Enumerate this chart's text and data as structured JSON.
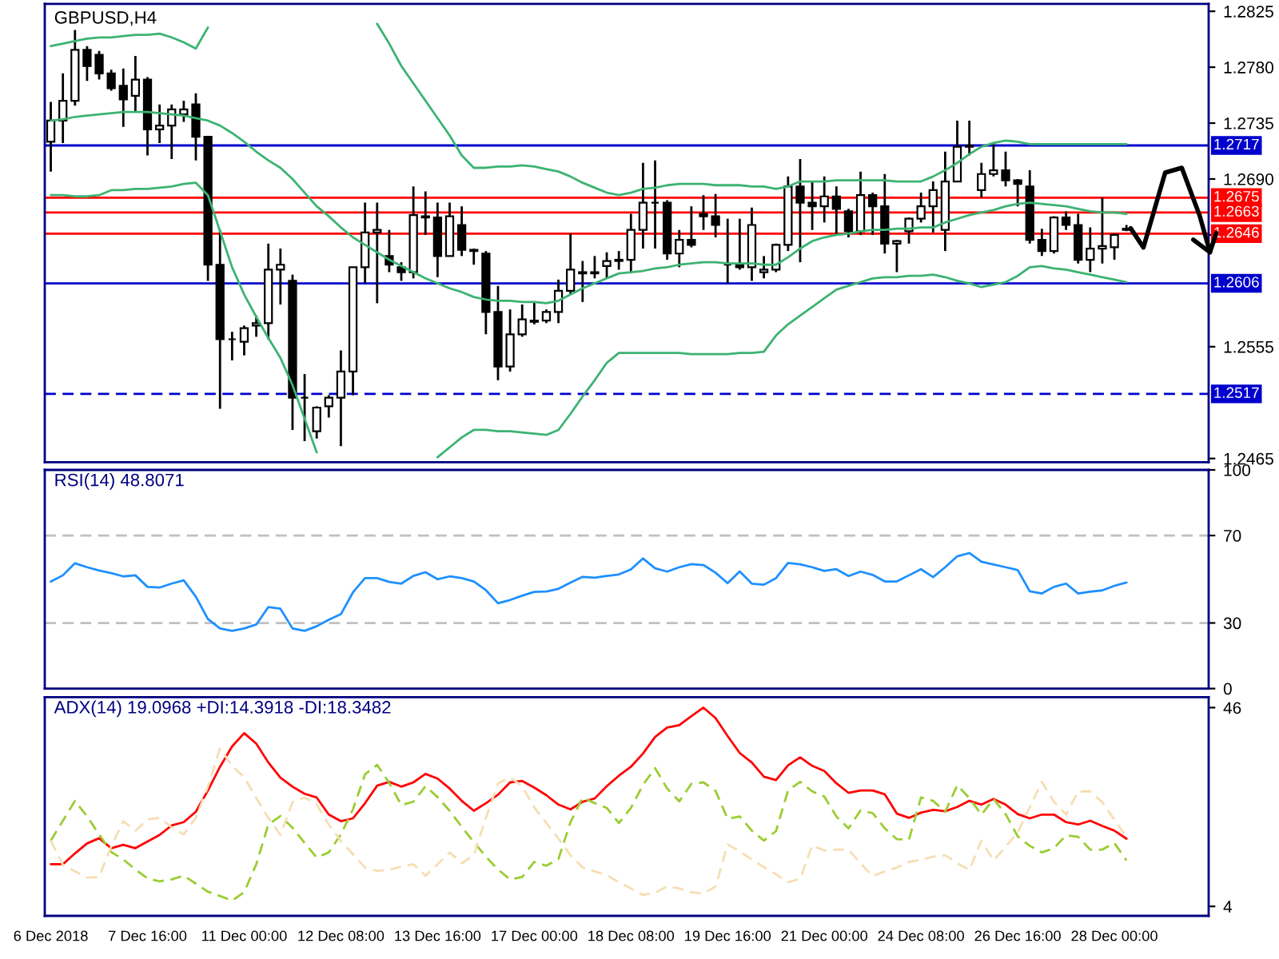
{
  "chart_data": [
    {
      "type": "candlestick",
      "title": "GBPUSD,H4",
      "categories": [
        null,
        null,
        null,
        null,
        null,
        null,
        null,
        null,
        null,
        null,
        null,
        null,
        null,
        null,
        null,
        null,
        null,
        null,
        null,
        null,
        null,
        null,
        null,
        null,
        null,
        null,
        null,
        null,
        null,
        null,
        null,
        null,
        null,
        null,
        null,
        null,
        null,
        null,
        null,
        null,
        null,
        null,
        null,
        null,
        null,
        null,
        null,
        null,
        null,
        null,
        null,
        null,
        null,
        null,
        null,
        null,
        null,
        null,
        null,
        null,
        null,
        null,
        null,
        null,
        null,
        null,
        null,
        null,
        null,
        null,
        null,
        null,
        null,
        null,
        null,
        null,
        null,
        null,
        null,
        null,
        null,
        null,
        null,
        null,
        null,
        null,
        null,
        null,
        null,
        null
      ],
      "ohlc": [
        [
          1.272,
          1.2752,
          1.2696,
          1.2737
        ],
        [
          1.2737,
          1.2775,
          1.2719,
          1.2753
        ],
        [
          1.2753,
          1.281,
          1.2749,
          1.2794
        ],
        [
          1.2794,
          1.2797,
          1.2769,
          1.2781
        ],
        [
          1.279,
          1.2793,
          1.277,
          1.2775
        ],
        [
          1.2775,
          1.2778,
          1.2761,
          1.2763
        ],
        [
          1.2765,
          1.2779,
          1.2732,
          1.2754
        ],
        [
          1.2757,
          1.2789,
          1.2744,
          1.277
        ],
        [
          1.277,
          1.2772,
          1.2709,
          1.273
        ],
        [
          1.273,
          1.275,
          1.2719,
          1.2733
        ],
        [
          1.2733,
          1.275,
          1.2706,
          1.2746
        ],
        [
          1.2742,
          1.2753,
          1.2736,
          1.2746
        ],
        [
          1.275,
          1.2759,
          1.2705,
          1.2724
        ],
        [
          1.2724,
          1.2724,
          1.2608,
          1.2621
        ],
        [
          1.2621,
          1.2649,
          1.2505,
          1.2561
        ],
        [
          1.2561,
          1.2567,
          1.2544,
          1.2561
        ],
        [
          1.2559,
          1.2572,
          1.2548,
          1.257
        ],
        [
          1.2572,
          1.258,
          1.2563,
          1.2574
        ],
        [
          1.2574,
          1.2638,
          1.2561,
          1.2617
        ],
        [
          1.2617,
          1.2634,
          1.2589,
          1.2621
        ],
        [
          1.2608,
          1.2613,
          1.2488,
          1.2514
        ],
        [
          1.2514,
          1.2533,
          1.2479,
          1.2514
        ],
        [
          1.2487,
          1.2507,
          1.2481,
          1.2506
        ],
        [
          1.2507,
          1.2516,
          1.2498,
          1.2514
        ],
        [
          1.2514,
          1.2552,
          1.2475,
          1.2535
        ],
        [
          1.2535,
          1.2619,
          1.2516,
          1.2619
        ],
        [
          1.2619,
          1.2671,
          1.2606,
          1.2647
        ],
        [
          1.2647,
          1.2671,
          1.259,
          1.2649
        ],
        [
          1.2628,
          1.2649,
          1.2615,
          1.2621
        ],
        [
          1.2619,
          1.2623,
          1.2608,
          1.2615
        ],
        [
          1.2615,
          1.2684,
          1.261,
          1.2661
        ],
        [
          1.266,
          1.268,
          1.2645,
          1.2659
        ],
        [
          1.2659,
          1.2671,
          1.2611,
          1.2628
        ],
        [
          1.2628,
          1.2671,
          1.2628,
          1.266
        ],
        [
          1.2653,
          1.2668,
          1.2628,
          1.2633
        ],
        [
          1.2633,
          1.2634,
          1.2621,
          1.2632
        ],
        [
          1.263,
          1.2632,
          1.2565,
          1.2583
        ],
        [
          1.2583,
          1.2604,
          1.2528,
          1.2539
        ],
        [
          1.2539,
          1.2585,
          1.2535,
          1.2565
        ],
        [
          1.2565,
          1.2589,
          1.2563,
          1.2577
        ],
        [
          1.2576,
          1.2591,
          1.2573,
          1.2575
        ],
        [
          1.2576,
          1.2585,
          1.2574,
          1.2583
        ],
        [
          1.2583,
          1.2609,
          1.2574,
          1.26
        ],
        [
          1.26,
          1.2646,
          1.2597,
          1.2617
        ],
        [
          1.2615,
          1.2624,
          1.2591,
          1.2614
        ],
        [
          1.2614,
          1.2628,
          1.261,
          1.2615
        ],
        [
          1.262,
          1.2631,
          1.261,
          1.2624
        ],
        [
          1.2624,
          1.2632,
          1.2617,
          1.2625
        ],
        [
          1.2625,
          1.2662,
          1.2614,
          1.2649
        ],
        [
          1.2649,
          1.2703,
          1.2634,
          1.2671
        ],
        [
          1.2671,
          1.2705,
          1.2634,
          1.2671
        ],
        [
          1.2671,
          1.2673,
          1.2625,
          1.263
        ],
        [
          1.263,
          1.2649,
          1.2619,
          1.2641
        ],
        [
          1.2641,
          1.2668,
          1.2635,
          1.2637
        ],
        [
          1.2662,
          1.2677,
          1.2649,
          1.266
        ],
        [
          1.266,
          1.2678,
          1.2643,
          1.2653
        ],
        [
          1.2621,
          1.2658,
          1.2606,
          1.2621
        ],
        [
          1.2621,
          1.2658,
          1.2617,
          1.2619
        ],
        [
          1.2619,
          1.2667,
          1.2608,
          1.2653
        ],
        [
          1.2615,
          1.2628,
          1.261,
          1.2617
        ],
        [
          1.2617,
          1.2638,
          1.2615,
          1.2637
        ],
        [
          1.2637,
          1.2692,
          1.2632,
          1.2684
        ],
        [
          1.2684,
          1.2706,
          1.2623,
          1.2671
        ],
        [
          1.2671,
          1.2688,
          1.2649,
          1.2668
        ],
        [
          1.2668,
          1.2692,
          1.2655,
          1.2676
        ],
        [
          1.2676,
          1.2684,
          1.2645,
          1.2666
        ],
        [
          1.2664,
          1.2666,
          1.2643,
          1.2648
        ],
        [
          1.2648,
          1.2696,
          1.2645,
          1.2677
        ],
        [
          1.2677,
          1.2679,
          1.2645,
          1.2668
        ],
        [
          1.2668,
          1.2694,
          1.263,
          1.2638
        ],
        [
          1.2638,
          1.2641,
          1.2615,
          1.264
        ],
        [
          1.2648,
          1.2659,
          1.2638,
          1.2658
        ],
        [
          1.2658,
          1.2679,
          1.2655,
          1.2668
        ],
        [
          1.2668,
          1.2688,
          1.2647,
          1.2681
        ],
        [
          1.2649,
          1.2712,
          1.2632,
          1.2688
        ],
        [
          1.2688,
          1.2737,
          1.2688,
          1.2716
        ],
        [
          1.2716,
          1.2737,
          1.2709,
          1.2717
        ],
        [
          1.2681,
          1.2703,
          1.2675,
          1.2694
        ],
        [
          1.2694,
          1.2718,
          1.2692,
          1.2697
        ],
        [
          1.2697,
          1.2712,
          1.2684,
          1.2689
        ],
        [
          1.2689,
          1.269,
          1.2668,
          1.2686
        ],
        [
          1.2684,
          1.2697,
          1.2638,
          1.2641
        ],
        [
          1.2641,
          1.265,
          1.2628,
          1.2632
        ],
        [
          1.2632,
          1.266,
          1.263,
          1.2659
        ],
        [
          1.2659,
          1.2664,
          1.2649,
          1.2653
        ],
        [
          1.2653,
          1.2662,
          1.2622,
          1.2625
        ],
        [
          1.2625,
          1.2651,
          1.2615,
          1.2634
        ],
        [
          1.2634,
          1.2675,
          1.2622,
          1.2636
        ],
        [
          1.2635,
          1.2646,
          1.2625,
          1.2645
        ],
        [
          1.265,
          1.2653,
          1.2648,
          1.2649
        ]
      ],
      "series": [
        {
          "type": "line",
          "color": "#3cb371",
          "values": [
            1.2797,
            1.2799,
            1.2801,
            1.2803,
            1.2804,
            1.2804,
            1.2805,
            1.2806,
            1.2806,
            1.2807,
            1.2804,
            1.28,
            1.2795,
            1.2812,
            null,
            null,
            null,
            null,
            null,
            null,
            null,
            null,
            null,
            null,
            null,
            null,
            null,
            1.2815,
            1.2799,
            1.2781,
            1.2767,
            1.2753,
            1.2739,
            1.2725,
            1.2709,
            1.2699,
            1.2699,
            1.27,
            1.27,
            1.2701,
            1.27,
            1.2698,
            1.2696,
            1.2692,
            1.2687,
            1.2683,
            1.2679,
            1.2677,
            1.2679,
            1.2682,
            1.2683,
            1.2685,
            1.2686,
            1.2686,
            1.2686,
            1.2685,
            1.2685,
            1.2685,
            1.2684,
            1.2684,
            1.2682,
            1.2684,
            1.2688,
            1.2688,
            1.2688,
            1.2689,
            1.2689,
            1.2689,
            1.2689,
            1.2689,
            1.2688,
            1.2688,
            1.2688,
            1.2692,
            1.2697,
            1.2703,
            1.271,
            1.2716,
            1.2719,
            1.2721,
            1.272,
            1.2718,
            1.2718,
            1.2718,
            1.2718,
            1.2718,
            1.2718,
            1.2718,
            1.2718,
            1.2718
          ]
        },
        {
          "type": "line",
          "color": "#3cb371",
          "values": [
            1.2737,
            1.2738,
            1.274,
            1.2741,
            1.2742,
            1.2743,
            1.2744,
            1.2744,
            1.2744,
            1.2743,
            1.2742,
            1.2741,
            1.2739,
            1.2737,
            1.2733,
            1.2727,
            1.272,
            1.2712,
            1.2705,
            1.2699,
            1.269,
            1.2679,
            1.2668,
            1.266,
            1.2651,
            1.2643,
            1.2637,
            1.2631,
            1.2625,
            1.262,
            1.2615,
            1.261,
            1.2606,
            1.2602,
            1.2599,
            1.2595,
            1.2593,
            1.2592,
            1.2592,
            1.2591,
            1.2591,
            1.259,
            1.2592,
            1.2597,
            1.2602,
            1.2606,
            1.261,
            1.2614,
            1.2615,
            1.2616,
            1.2618,
            1.2619,
            1.2621,
            1.2622,
            1.2623,
            1.2623,
            1.2622,
            1.2622,
            1.2622,
            1.2621,
            1.2621,
            1.2627,
            1.2634,
            1.264,
            1.2643,
            1.2645,
            1.2646,
            1.2648,
            1.2649,
            1.2649,
            1.265,
            1.265,
            1.2651,
            1.2651,
            1.2655,
            1.2658,
            1.2661,
            1.2663,
            1.2665,
            1.2668,
            1.267,
            1.2671,
            1.267,
            1.2669,
            1.2668,
            1.2666,
            1.2664,
            1.2663,
            1.2663,
            1.2662
          ]
        },
        {
          "type": "line",
          "color": "#3cb371",
          "values": [
            1.2677,
            1.2677,
            1.2676,
            1.2676,
            1.2677,
            1.2681,
            1.2681,
            1.2682,
            1.2682,
            1.2683,
            1.2684,
            1.2686,
            1.2687,
            1.2677,
            1.2648,
            1.2619,
            1.2597,
            1.2579,
            1.2562,
            1.2546,
            1.2524,
            1.2497,
            1.247,
            null,
            null,
            null,
            null,
            null,
            null,
            null,
            null,
            null,
            1.2466,
            1.2474,
            1.2482,
            1.2488,
            1.2488,
            1.2487,
            1.2487,
            1.2486,
            1.2485,
            1.2484,
            1.2488,
            1.2501,
            1.2515,
            1.2528,
            1.2542,
            1.255,
            1.255,
            1.255,
            1.255,
            1.255,
            1.255,
            1.2549,
            1.2549,
            1.2549,
            1.2549,
            1.255,
            1.255,
            1.2551,
            1.2564,
            1.2573,
            1.258,
            1.2587,
            1.2594,
            1.2601,
            1.2604,
            1.2607,
            1.261,
            1.2611,
            1.2611,
            1.2612,
            1.2612,
            1.2613,
            1.2611,
            1.2608,
            1.2606,
            1.2603,
            1.2605,
            1.2607,
            1.2612,
            1.2619,
            1.262,
            1.2618,
            1.2617,
            1.2615,
            1.2613,
            1.2611,
            1.2609,
            1.2607
          ]
        }
      ],
      "ylim": [
        1.2462,
        1.2831
      ],
      "yticks": [
        {
          "value": 1.2465,
          "label": "1.2465"
        },
        {
          "value": 1.2555,
          "label": "1.2555"
        },
        {
          "value": 1.2645,
          "label": null
        },
        {
          "value": 1.269,
          "label": "1.2690"
        },
        {
          "value": 1.2735,
          "label": "1.2735"
        },
        {
          "value": 1.278,
          "label": "1.2780"
        },
        {
          "value": 1.2825,
          "label": "1.2825"
        }
      ],
      "ref_lines": [
        {
          "axis": "y",
          "value": 1.2717,
          "label": "1.2717",
          "color": "#0000cd",
          "line_style": "solid"
        },
        {
          "axis": "y",
          "value": 1.2675,
          "label": "1.2675",
          "color": "#ff0000",
          "line_style": "solid"
        },
        {
          "axis": "y",
          "value": 1.2663,
          "label": "1.2663",
          "color": "#ff0000",
          "line_style": "solid"
        },
        {
          "axis": "y",
          "value": 1.2646,
          "label": "1.2646",
          "color": "#ff0000",
          "line_style": "solid"
        },
        {
          "axis": "y",
          "value": 1.2606,
          "label": "1.2606",
          "color": "#0000cd",
          "line_style": "solid"
        },
        {
          "axis": "y",
          "value": 1.2517,
          "label": "1.2517",
          "color": "#0000cd",
          "line_style": "dashed"
        }
      ]
    },
    {
      "type": "line",
      "title": "RSI(14) 48.8071",
      "categories": [
        null,
        null,
        null,
        null,
        null,
        null,
        null,
        null,
        null,
        null,
        null,
        null,
        null,
        null,
        null,
        null,
        null,
        null,
        null,
        null,
        null,
        null,
        null,
        null,
        null,
        null,
        null,
        null,
        null,
        null,
        null,
        null,
        null,
        null,
        null,
        null,
        null,
        null,
        null,
        null,
        null,
        null,
        null,
        null,
        null,
        null,
        null,
        null,
        null,
        null,
        null,
        null,
        null,
        null,
        null,
        null,
        null,
        null,
        null,
        null,
        null,
        null,
        null,
        null,
        null,
        null,
        null,
        null,
        null,
        null,
        null,
        null,
        null,
        null,
        null,
        null,
        null,
        null,
        null,
        null,
        null,
        null,
        null,
        null,
        null,
        null,
        null,
        null,
        null,
        null
      ],
      "series": [
        {
          "color": "#1e90ff",
          "values": [
            48.9,
            51.8,
            57.3,
            55.5,
            54.0,
            52.8,
            51.3,
            51.8,
            46.5,
            46.2,
            48.0,
            49.5,
            42.0,
            31.8,
            27.5,
            26.4,
            27.5,
            29.3,
            37.3,
            36.5,
            27.5,
            26.4,
            28.5,
            31.5,
            34.0,
            44.0,
            50.5,
            50.5,
            48.8,
            48.0,
            51.5,
            53.2,
            50.0,
            51.3,
            50.5,
            49.0,
            45.0,
            39.0,
            40.5,
            42.5,
            44.2,
            44.4,
            45.6,
            48.5,
            51.1,
            50.7,
            51.5,
            52.2,
            54.5,
            59.5,
            55.0,
            53.5,
            55.5,
            56.9,
            56.5,
            53.0,
            48.2,
            53.6,
            48.0,
            47.5,
            50.5,
            57.5,
            56.8,
            55.5,
            53.8,
            54.6,
            51.5,
            53.5,
            52.0,
            49.0,
            49.0,
            51.8,
            54.6,
            51.0,
            55.5,
            60.5,
            62.0,
            58.0,
            56.7,
            55.5,
            54.2,
            44.5,
            43.5,
            46.5,
            48.0,
            43.5,
            44.3,
            44.9,
            47.0,
            48.5
          ]
        }
      ],
      "ylim": [
        0,
        100
      ],
      "yticks": [
        0,
        30,
        70,
        100
      ],
      "ref_lines": [
        {
          "axis": "y",
          "value": 70,
          "color": "#c0c0c0",
          "line_style": "dashed"
        },
        {
          "axis": "y",
          "value": 30,
          "color": "#c0c0c0",
          "line_style": "dashed"
        }
      ]
    },
    {
      "type": "line",
      "title": "ADX(14) 19.0968 +DI:14.3918 -DI:18.3482",
      "categories": [
        "6 Dec 2018",
        null,
        null,
        null,
        null,
        null,
        null,
        null,
        "7 Dec 16:00",
        null,
        null,
        null,
        null,
        null,
        null,
        null,
        "11 Dec 00:00",
        null,
        null,
        null,
        null,
        null,
        null,
        null,
        "12 Dec 08:00",
        null,
        null,
        null,
        null,
        null,
        null,
        null,
        "13 Dec 16:00",
        null,
        null,
        null,
        null,
        null,
        null,
        null,
        "17 Dec 00:00",
        null,
        null,
        null,
        null,
        null,
        null,
        null,
        "18 Dec 08:00",
        null,
        null,
        null,
        null,
        null,
        null,
        null,
        "19 Dec 16:00",
        null,
        null,
        null,
        null,
        null,
        null,
        null,
        "21 Dec 00:00",
        null,
        null,
        null,
        null,
        null,
        null,
        null,
        "24 Dec 08:00",
        null,
        null,
        null,
        null,
        null,
        null,
        null,
        "26 Dec 16:00",
        null,
        null,
        null,
        null,
        null,
        null,
        null,
        "28 Dec 00:00",
        null
      ],
      "series": [
        {
          "color": "#ff0000",
          "line_style": "solid",
          "values": [
            12.9,
            12.9,
            15.2,
            17.3,
            18.4,
            16.3,
            17.0,
            16.3,
            17.7,
            19.1,
            21.1,
            21.8,
            24.0,
            28.5,
            33.5,
            37.8,
            40.6,
            38.4,
            34.4,
            31.2,
            29.3,
            27.8,
            27.0,
            23.4,
            22.0,
            22.6,
            25.8,
            29.5,
            30.3,
            29.3,
            30.2,
            32.0,
            31.0,
            28.9,
            26.3,
            24.2,
            25.8,
            27.6,
            30.2,
            30.5,
            29.1,
            27.5,
            25.5,
            24.5,
            26.1,
            26.8,
            29.4,
            31.6,
            33.5,
            36.3,
            39.8,
            41.8,
            42.3,
            44.2,
            46.0,
            43.8,
            40.0,
            36.4,
            34.4,
            31.4,
            30.7,
            33.8,
            35.5,
            33.7,
            32.6,
            30.0,
            28.0,
            28.5,
            28.5,
            27.7,
            23.6,
            22.7,
            23.8,
            24.4,
            24.1,
            25.0,
            26.3,
            25.5,
            26.7,
            25.5,
            23.5,
            22.6,
            23.4,
            23.4,
            21.8,
            21.3,
            22.1,
            21.0,
            20.0,
            18.3
          ]
        },
        {
          "color": "#9acd32",
          "line_style": "dashed",
          "values": [
            17.9,
            22.1,
            26.3,
            23.0,
            19.2,
            15.5,
            13.9,
            11.8,
            9.9,
            9.3,
            9.7,
            10.5,
            8.8,
            7.1,
            6.2,
            5.2,
            7.0,
            12.9,
            21.3,
            23.1,
            20.6,
            17.4,
            14.3,
            15.4,
            19.2,
            24.5,
            31.9,
            33.9,
            30.1,
            25.4,
            26.1,
            29.4,
            27.1,
            24.2,
            20.8,
            17.6,
            14.5,
            11.8,
            9.7,
            10.2,
            13.4,
            12.6,
            14.0,
            21.8,
            27.0,
            25.8,
            24.8,
            21.6,
            24.8,
            29.7,
            33.2,
            28.9,
            26.2,
            29.9,
            30.2,
            28.4,
            22.5,
            23.0,
            20.0,
            17.9,
            19.9,
            28.5,
            30.3,
            28.3,
            27.2,
            23.0,
            20.5,
            24.3,
            23.7,
            20.5,
            18.2,
            18.1,
            27.0,
            26.3,
            24.0,
            29.6,
            26.9,
            23.4,
            26.7,
            23.5,
            18.8,
            16.8,
            15.4,
            16.3,
            19.0,
            18.7,
            16.0,
            16.0,
            17.4,
            13.7
          ]
        },
        {
          "color": "#f5deb3",
          "line_style": "dashed",
          "values": [
            17.9,
            12.8,
            11.4,
            10.1,
            10.2,
            16.7,
            22.0,
            20.0,
            22.4,
            22.7,
            20.7,
            19.2,
            22.7,
            29.3,
            37.4,
            33.7,
            31.3,
            26.9,
            22.7,
            19.1,
            26.0,
            27.0,
            25.5,
            21.3,
            17.8,
            15.0,
            12.2,
            11.5,
            11.7,
            12.4,
            12.9,
            10.5,
            12.9,
            15.4,
            13.1,
            14.8,
            22.7,
            30.0,
            31.2,
            29.4,
            24.9,
            21.6,
            18.3,
            14.8,
            12.2,
            11.4,
            10.6,
            9.1,
            7.8,
            6.4,
            6.9,
            8.2,
            7.8,
            7.0,
            6.7,
            8.2,
            17.1,
            15.6,
            13.9,
            12.3,
            10.8,
            9.1,
            9.8,
            16.9,
            15.8,
            16.0,
            16.0,
            13.1,
            10.4,
            11.4,
            12.2,
            13.4,
            13.8,
            14.5,
            14.8,
            13.1,
            11.7,
            17.9,
            13.7,
            16.6,
            19.6,
            25.0,
            30.3,
            26.1,
            23.4,
            28.3,
            28.3,
            26.0,
            22.3,
            18.7
          ]
        }
      ],
      "ylim": [
        2.0,
        48.2
      ],
      "yticks": [
        4,
        46
      ]
    }
  ]
}
